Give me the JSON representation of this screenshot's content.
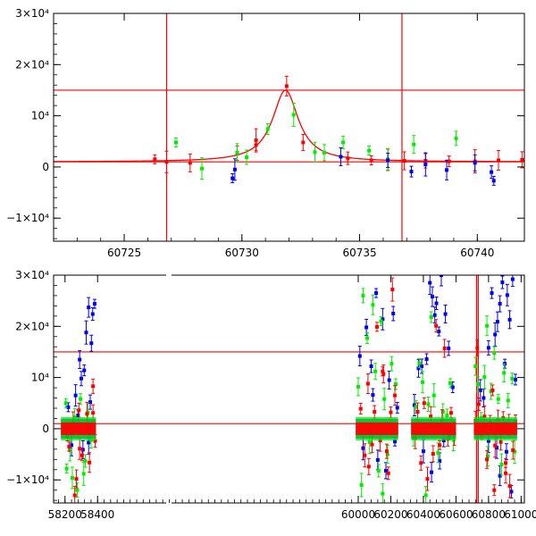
{
  "chart_data": [
    {
      "type": "scatter",
      "title": "",
      "xlabel": "",
      "ylabel": "",
      "xlim": [
        60722,
        60742
      ],
      "ylim": [
        -14500,
        30000
      ],
      "x_ticks": [
        {
          "value": 60725,
          "label": "60725"
        },
        {
          "value": 60730,
          "label": "60730"
        },
        {
          "value": 60735,
          "label": "60735"
        },
        {
          "value": 60740,
          "label": "60740"
        }
      ],
      "y_ticks": [
        {
          "value": 30000,
          "label": "3×10⁴"
        },
        {
          "value": 20000,
          "label": "2×10⁴"
        },
        {
          "value": 10000,
          "label": "10⁴"
        },
        {
          "value": 0,
          "label": "0"
        },
        {
          "value": -10000,
          "label": "−1×10⁴"
        }
      ],
      "hlines": [
        15000,
        1000
      ],
      "vlines": [
        60726.8,
        60736.8
      ],
      "model": {
        "name": "fit",
        "color": "#ff0000",
        "baseline": 1000,
        "peak": 15000,
        "t0": 60731.85,
        "tE": 0.9
      },
      "series": [
        {
          "name": "red",
          "color": "#ff0000",
          "points": [
            [
              60726.3,
              1500
            ],
            [
              60726.8,
              1000
            ],
            [
              60727.8,
              800
            ],
            [
              60729.8,
              2700
            ],
            [
              60730.6,
              4300
            ],
            [
              60730.6,
              5200
            ],
            [
              60731.9,
              15800
            ],
            [
              60732.6,
              4800
            ],
            [
              60734.5,
              1700
            ],
            [
              60735.5,
              1300
            ],
            [
              60736.2,
              1400
            ],
            [
              60736.9,
              1200
            ],
            [
              60737.8,
              1200
            ],
            [
              60738.8,
              1100
            ],
            [
              60739.9,
              1100
            ],
            [
              60740.9,
              1300
            ],
            [
              60741.9,
              1400
            ]
          ]
        },
        {
          "name": "green",
          "color": "#00ee00",
          "points": [
            [
              60727.2,
              4800
            ],
            [
              60728.3,
              -300
            ],
            [
              60729.8,
              2800
            ],
            [
              60730.2,
              1900
            ],
            [
              60731.1,
              7400
            ],
            [
              60732.2,
              10200
            ],
            [
              60733.1,
              2900
            ],
            [
              60733.5,
              2800
            ],
            [
              60734.3,
              4800
            ],
            [
              60735.4,
              3200
            ],
            [
              60736.2,
              1500
            ],
            [
              60737.3,
              4400
            ],
            [
              60739.1,
              5600
            ]
          ]
        },
        {
          "name": "blue",
          "color": "#0000ee",
          "points": [
            [
              60729.6,
              -2200
            ],
            [
              60729.7,
              -500
            ],
            [
              60734.2,
              2000
            ],
            [
              60736.2,
              1300
            ],
            [
              60737.2,
              -900
            ],
            [
              60737.8,
              500
            ],
            [
              60738.7,
              -600
            ],
            [
              60739.9,
              800
            ],
            [
              60740.6,
              -1000
            ],
            [
              60740.7,
              -2700
            ]
          ]
        }
      ]
    },
    {
      "type": "scatter",
      "title": "",
      "xlabel": "",
      "ylabel": "",
      "xlim": [
        58130,
        61020
      ],
      "ylim": [
        -14500,
        30000
      ],
      "x_ticks": [
        {
          "value": 58200,
          "label": "58200"
        },
        {
          "value": 58400,
          "label": "58400"
        },
        {
          "value": 60000,
          "label": "60000"
        },
        {
          "value": 60200,
          "label": "60200"
        },
        {
          "value": 60400,
          "label": "60400"
        },
        {
          "value": 60600,
          "label": "60600"
        },
        {
          "value": 60800,
          "label": "60800"
        },
        {
          "value": 61000,
          "label": "61000"
        }
      ],
      "y_ticks": [
        {
          "value": 30000,
          "label": "3×10⁴"
        },
        {
          "value": 20000,
          "label": "2×10⁴"
        },
        {
          "value": 10000,
          "label": "10⁴"
        },
        {
          "value": 0,
          "label": "0"
        },
        {
          "value": -10000,
          "label": "−1×10⁴"
        }
      ],
      "hlines": [
        15000,
        1000
      ],
      "vlines": [
        60726.8,
        60736.8
      ],
      "seasons": [
        [
          58175,
          58390
        ],
        [
          59985,
          60245
        ],
        [
          60325,
          60600
        ],
        [
          60710,
          60975
        ]
      ],
      "series": [
        {
          "name": "blue",
          "color": "#0000ee",
          "points": [
            [
              58220,
              4200
            ],
            [
              58265,
              6500
            ],
            [
              58290,
              13500
            ],
            [
              58300,
              9800
            ],
            [
              58318,
              11400
            ],
            [
              58330,
              18800
            ],
            [
              58345,
              23700
            ],
            [
              58362,
              16700
            ],
            [
              58370,
              22400
            ],
            [
              58382,
              24400
            ],
            [
              58240,
              -3200
            ],
            [
              58310,
              -4100
            ],
            [
              58355,
              5200
            ],
            [
              58280,
              2600
            ],
            [
              58345,
              -2700
            ],
            [
              60010,
              14200
            ],
            [
              60050,
              19800
            ],
            [
              60080,
              12200
            ],
            [
              60110,
              26500
            ],
            [
              60150,
              21400
            ],
            [
              60190,
              9500
            ],
            [
              60215,
              22500
            ],
            [
              60240,
              4100
            ],
            [
              60030,
              -3800
            ],
            [
              60120,
              -6100
            ],
            [
              60170,
              -8200
            ],
            [
              60090,
              6600
            ],
            [
              60225,
              -2500
            ],
            [
              60345,
              4600
            ],
            [
              60370,
              11800
            ],
            [
              60390,
              12200
            ],
            [
              60420,
              13600
            ],
            [
              60440,
              28500
            ],
            [
              60455,
              25800
            ],
            [
              60470,
              22200
            ],
            [
              60480,
              24500
            ],
            [
              60495,
              19000
            ],
            [
              60510,
              30000
            ],
            [
              60535,
              22400
            ],
            [
              60555,
              15700
            ],
            [
              60580,
              8100
            ],
            [
              60400,
              -4400
            ],
            [
              60450,
              -8500
            ],
            [
              60500,
              -6300
            ],
            [
              60525,
              -2300
            ],
            [
              60560,
              -1200
            ],
            [
              60750,
              7500
            ],
            [
              60770,
              6000
            ],
            [
              60800,
              15800
            ],
            [
              60820,
              26500
            ],
            [
              60840,
              18400
            ],
            [
              60855,
              20900
            ],
            [
              60870,
              24400
            ],
            [
              60885,
              28600
            ],
            [
              60900,
              12700
            ],
            [
              60915,
              26100
            ],
            [
              60930,
              21300
            ],
            [
              60948,
              29200
            ],
            [
              60965,
              9600
            ],
            [
              60800,
              -2400
            ],
            [
              60870,
              -9200
            ],
            [
              60910,
              -4500
            ],
            [
              60940,
              -12300
            ],
            [
              60760,
              -500
            ],
            [
              60850,
              -3700
            ]
          ]
        },
        {
          "name": "green",
          "color": "#00ee00",
          "points": [
            [
              58210,
              -7800
            ],
            [
              58230,
              -4200
            ],
            [
              58260,
              2200
            ],
            [
              58275,
              -12000
            ],
            [
              58295,
              5800
            ],
            [
              58315,
              -8800
            ],
            [
              58340,
              3200
            ],
            [
              58360,
              -2200
            ],
            [
              58325,
              -6300
            ],
            [
              58205,
              5000
            ],
            [
              58245,
              -9600
            ],
            [
              60000,
              8200
            ],
            [
              60030,
              26000
            ],
            [
              60055,
              17700
            ],
            [
              60070,
              -2600
            ],
            [
              60090,
              24200
            ],
            [
              60105,
              11200
            ],
            [
              60125,
              -8200
            ],
            [
              60140,
              21000
            ],
            [
              60160,
              5800
            ],
            [
              60180,
              -5000
            ],
            [
              60205,
              12700
            ],
            [
              60230,
              8700
            ],
            [
              60020,
              -11000
            ],
            [
              60150,
              -12700
            ],
            [
              60340,
              -1800
            ],
            [
              60355,
              4300
            ],
            [
              60375,
              12800
            ],
            [
              60395,
              9100
            ],
            [
              60415,
              -13000
            ],
            [
              60430,
              4800
            ],
            [
              60448,
              21800
            ],
            [
              60465,
              6500
            ],
            [
              60490,
              -4700
            ],
            [
              60520,
              3300
            ],
            [
              60545,
              2600
            ],
            [
              60565,
              8900
            ],
            [
              60585,
              -2200
            ],
            [
              60720,
              12200
            ],
            [
              60735,
              8700
            ],
            [
              60755,
              2100
            ],
            [
              60775,
              10100
            ],
            [
              60795,
              -5400
            ],
            [
              60815,
              7300
            ],
            [
              60835,
              14800
            ],
            [
              60860,
              5800
            ],
            [
              60880,
              -7000
            ],
            [
              60895,
              10900
            ],
            [
              60920,
              5500
            ],
            [
              60945,
              9800
            ],
            [
              60960,
              -4500
            ],
            [
              60790,
              20100
            ]
          ]
        },
        {
          "name": "red",
          "color": "#ff0000",
          "points": [
            [
              58225,
              -3500
            ],
            [
              58250,
              1200
            ],
            [
              58270,
              -9800
            ],
            [
              58285,
              3600
            ],
            [
              58305,
              -5200
            ],
            [
              58335,
              2900
            ],
            [
              58350,
              -6600
            ],
            [
              58372,
              3100
            ],
            [
              58385,
              -2400
            ],
            [
              58215,
              -1500
            ],
            [
              58290,
              -3900
            ],
            [
              58260,
              -13000
            ],
            [
              58372,
              8300
            ],
            [
              60015,
              3900
            ],
            [
              60040,
              -5200
            ],
            [
              60060,
              8800
            ],
            [
              60085,
              -3100
            ],
            [
              60100,
              3300
            ],
            [
              60115,
              19900
            ],
            [
              60135,
              -2300
            ],
            [
              60155,
              10700
            ],
            [
              60175,
              -4400
            ],
            [
              60200,
              3200
            ],
            [
              60210,
              27200
            ],
            [
              60225,
              6500
            ],
            [
              60065,
              -7400
            ],
            [
              60185,
              -8700
            ],
            [
              60150,
              11200
            ],
            [
              60350,
              -1800
            ],
            [
              60365,
              3300
            ],
            [
              60385,
              -6700
            ],
            [
              60405,
              5000
            ],
            [
              60425,
              -9800
            ],
            [
              60445,
              2400
            ],
            [
              60460,
              -4900
            ],
            [
              60478,
              20100
            ],
            [
              60500,
              -3200
            ],
            [
              60515,
              1600
            ],
            [
              60530,
              15700
            ],
            [
              60550,
              -2000
            ],
            [
              60570,
              3100
            ],
            [
              60590,
              -1000
            ],
            [
              60720,
              1500
            ],
            [
              60731,
              15800
            ],
            [
              60740,
              4800
            ],
            [
              60758,
              -1200
            ],
            [
              60775,
              2400
            ],
            [
              60790,
              -6000
            ],
            [
              60810,
              1200
            ],
            [
              60825,
              7500
            ],
            [
              60840,
              -3300
            ],
            [
              60858,
              1700
            ],
            [
              60875,
              -2600
            ],
            [
              60890,
              2100
            ],
            [
              60905,
              -6700
            ],
            [
              60925,
              700
            ],
            [
              60950,
              -4200
            ],
            [
              60965,
              1300
            ],
            [
              60835,
              -12000
            ],
            [
              60930,
              -11200
            ],
            [
              60905,
              -8700
            ]
          ]
        }
      ]
    }
  ]
}
